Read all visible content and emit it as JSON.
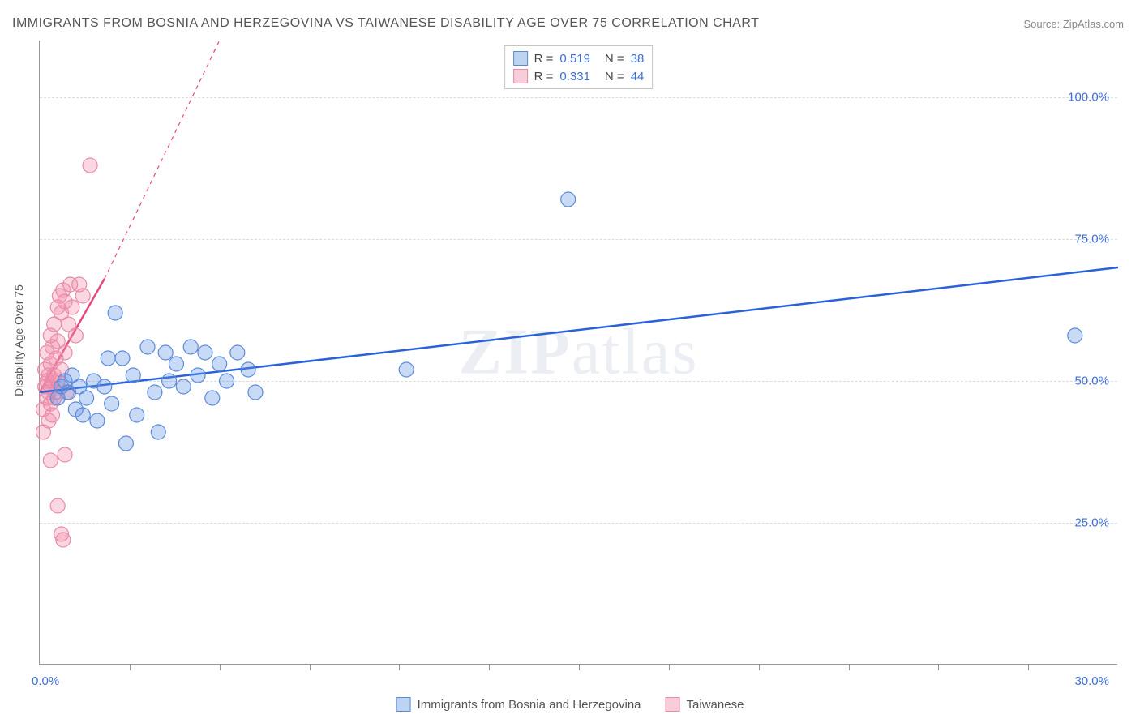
{
  "title": "IMMIGRANTS FROM BOSNIA AND HERZEGOVINA VS TAIWANESE DISABILITY AGE OVER 75 CORRELATION CHART",
  "source": "Source: ZipAtlas.com",
  "watermark": "ZIPatlas",
  "chart": {
    "type": "scatter",
    "background_color": "#ffffff",
    "grid_color": "#dcdcdc",
    "axis_color": "#999999",
    "y_axis_title": "Disability Age Over 75",
    "xlim": [
      0,
      30
    ],
    "ylim": [
      0,
      110
    ],
    "x_tick_positions": [
      2.5,
      5,
      7.5,
      10,
      12.5,
      15,
      17.5,
      20,
      22.5,
      25,
      27.5
    ],
    "x_axis_labels": {
      "min": "0.0%",
      "max": "30.0%"
    },
    "y_grid": [
      {
        "value": 25,
        "label": "25.0%"
      },
      {
        "value": 50,
        "label": "50.0%"
      },
      {
        "value": 75,
        "label": "75.0%"
      },
      {
        "value": 100,
        "label": "100.0%"
      }
    ],
    "series": [
      {
        "name": "Immigrants from Bosnia and Herzegovina",
        "color_fill": "rgba(100,150,230,0.35)",
        "color_stroke": "#5b8bd8",
        "marker_radius": 9,
        "R": "0.519",
        "N": "38",
        "trend": {
          "x1": 0,
          "y1": 48,
          "x2": 30,
          "y2": 70,
          "color": "#2962d9",
          "width": 2.5,
          "dash": "none"
        },
        "points": [
          [
            0.5,
            47
          ],
          [
            0.6,
            49
          ],
          [
            0.7,
            50
          ],
          [
            0.8,
            48
          ],
          [
            0.9,
            51
          ],
          [
            1.0,
            45
          ],
          [
            1.1,
            49
          ],
          [
            1.2,
            44
          ],
          [
            1.3,
            47
          ],
          [
            1.5,
            50
          ],
          [
            1.6,
            43
          ],
          [
            1.8,
            49
          ],
          [
            1.9,
            54
          ],
          [
            2.0,
            46
          ],
          [
            2.1,
            62
          ],
          [
            2.3,
            54
          ],
          [
            2.4,
            39
          ],
          [
            2.6,
            51
          ],
          [
            2.7,
            44
          ],
          [
            3.0,
            56
          ],
          [
            3.2,
            48
          ],
          [
            3.3,
            41
          ],
          [
            3.5,
            55
          ],
          [
            3.6,
            50
          ],
          [
            3.8,
            53
          ],
          [
            4.0,
            49
          ],
          [
            4.2,
            56
          ],
          [
            4.4,
            51
          ],
          [
            4.6,
            55
          ],
          [
            4.8,
            47
          ],
          [
            5.0,
            53
          ],
          [
            5.2,
            50
          ],
          [
            5.5,
            55
          ],
          [
            5.8,
            52
          ],
          [
            6.0,
            48
          ],
          [
            10.2,
            52
          ],
          [
            14.7,
            82
          ],
          [
            28.8,
            58
          ]
        ]
      },
      {
        "name": "Taiwanese",
        "color_fill": "rgba(240,140,170,0.35)",
        "color_stroke": "#e88aa8",
        "marker_radius": 9,
        "R": "0.331",
        "N": "44",
        "trend": {
          "x1": 0,
          "y1": 48,
          "x2": 1.8,
          "y2": 68,
          "color": "#e74a7a",
          "width": 2.5,
          "dash": "none",
          "extend_dash_to_x": 5,
          "extend_dash_to_y": 110
        },
        "points": [
          [
            0.1,
            41
          ],
          [
            0.1,
            45
          ],
          [
            0.15,
            49
          ],
          [
            0.15,
            52
          ],
          [
            0.2,
            47
          ],
          [
            0.2,
            50
          ],
          [
            0.2,
            55
          ],
          [
            0.25,
            43
          ],
          [
            0.25,
            48
          ],
          [
            0.25,
            51
          ],
          [
            0.3,
            46
          ],
          [
            0.3,
            49
          ],
          [
            0.3,
            53
          ],
          [
            0.3,
            58
          ],
          [
            0.35,
            44
          ],
          [
            0.35,
            50
          ],
          [
            0.35,
            56
          ],
          [
            0.4,
            47
          ],
          [
            0.4,
            51
          ],
          [
            0.4,
            60
          ],
          [
            0.45,
            48
          ],
          [
            0.45,
            54
          ],
          [
            0.5,
            50
          ],
          [
            0.5,
            57
          ],
          [
            0.5,
            63
          ],
          [
            0.55,
            65
          ],
          [
            0.6,
            52
          ],
          [
            0.6,
            62
          ],
          [
            0.65,
            66
          ],
          [
            0.7,
            55
          ],
          [
            0.7,
            64
          ],
          [
            0.75,
            48
          ],
          [
            0.8,
            60
          ],
          [
            0.85,
            67
          ],
          [
            0.9,
            63
          ],
          [
            1.0,
            58
          ],
          [
            1.1,
            67
          ],
          [
            1.2,
            65
          ],
          [
            1.4,
            88
          ],
          [
            0.3,
            36
          ],
          [
            0.5,
            28
          ],
          [
            0.6,
            23
          ],
          [
            0.65,
            22
          ],
          [
            0.7,
            37
          ]
        ]
      }
    ]
  },
  "legend_top_swatch_colors": {
    "blue_fill": "#bcd3f2",
    "blue_stroke": "#5b8bd8",
    "pink_fill": "#f7cdd9",
    "pink_stroke": "#e88aa8"
  }
}
